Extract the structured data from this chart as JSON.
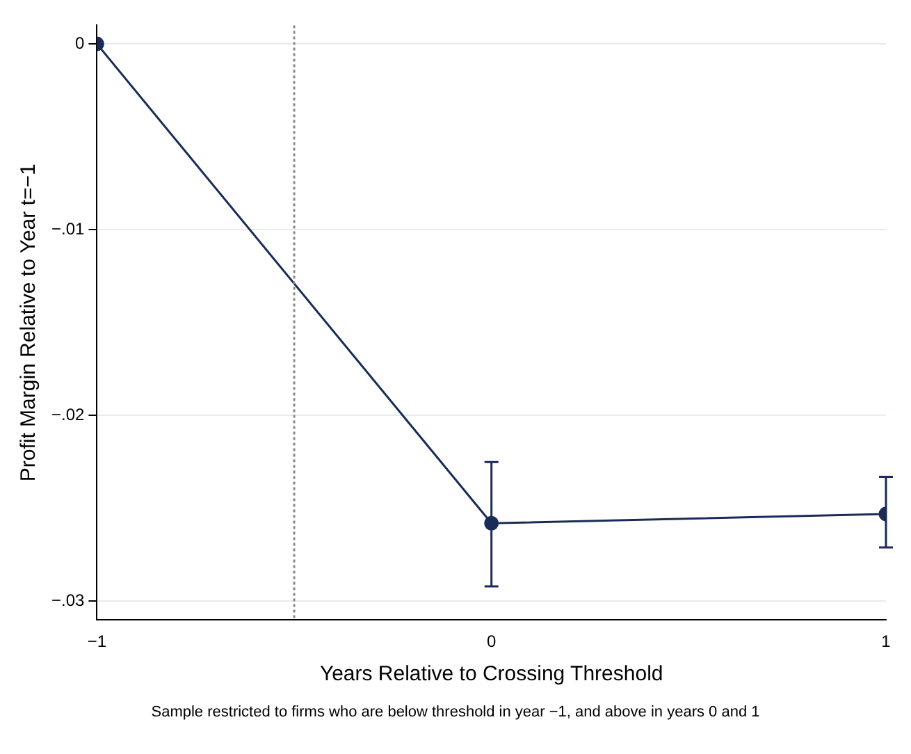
{
  "chart_data": {
    "type": "line",
    "xlabel": "Years Relative to Crossing Threshold",
    "ylabel": "Profit Margin Relative to Year t=−1",
    "x": [
      -1,
      0,
      1
    ],
    "series": [
      {
        "color": "#1a2b57",
        "values": [
          0,
          -0.0258,
          -0.0253
        ],
        "errors": [
          null,
          [
            -0.0292,
            -0.0225
          ],
          [
            -0.0271,
            -0.0233
          ]
        ]
      }
    ],
    "xlim": [
      -1,
      1
    ],
    "xticks": [
      {
        "value": -1,
        "label": "−1"
      },
      0,
      1
    ],
    "ylim": [
      -0.031,
      0.001
    ],
    "yticks": [
      {
        "value": -0.03,
        "label": "−.03"
      },
      {
        "value": -0.02,
        "label": "−.02"
      },
      {
        "value": -0.01,
        "label": "−.01"
      },
      0
    ],
    "grid": "y",
    "marker": "circle",
    "line_style": "solid",
    "legend": false,
    "ref_lines": [
      {
        "axis": "x",
        "value": -0.5,
        "line_style": "dotted",
        "color": "#888888"
      }
    ],
    "annotations": [
      "Sample restricted to firms who are below threshold in year −1, and above in years 0 and 1"
    ]
  }
}
